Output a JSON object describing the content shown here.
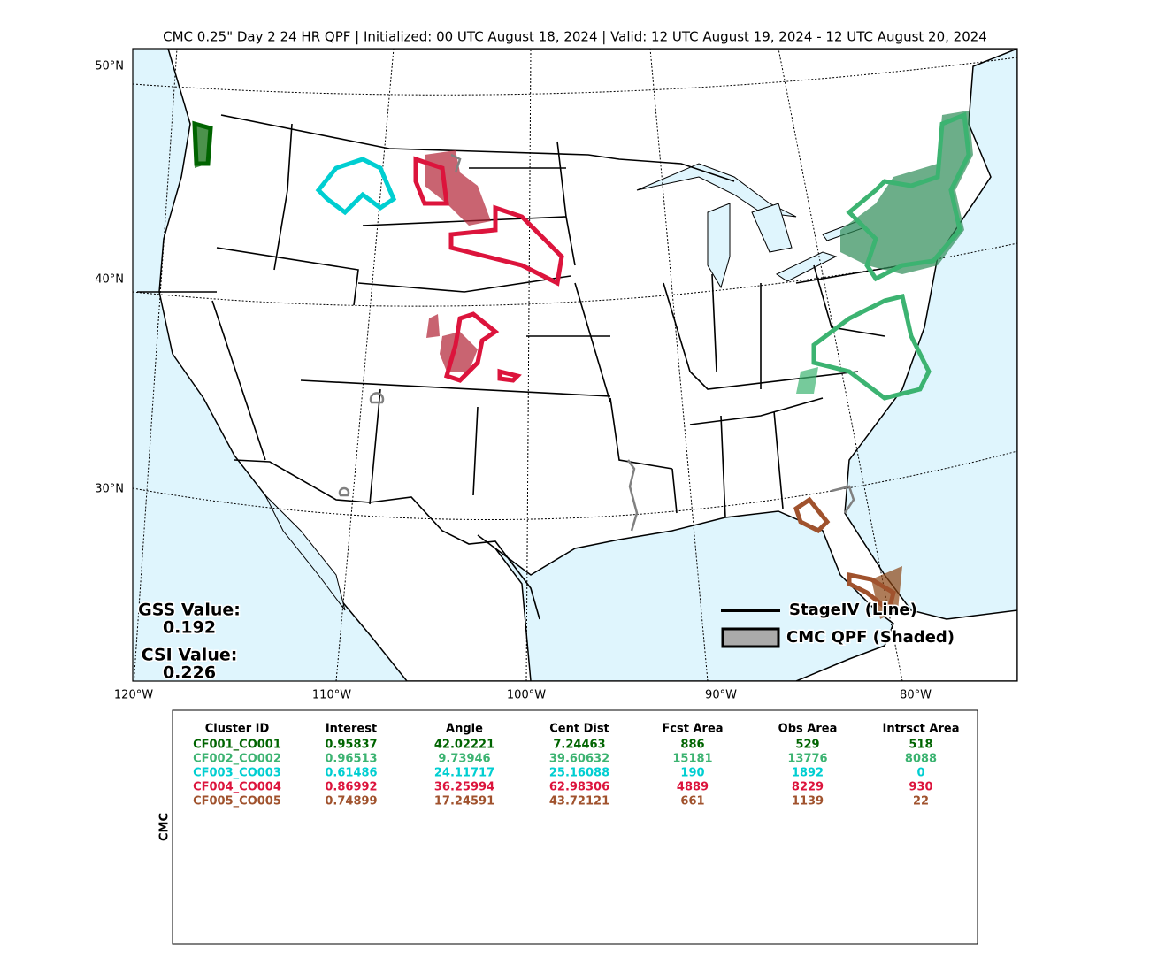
{
  "title": "CMC 0.25\" Day 2 24 HR QPF | Initialized: 00 UTC August 18, 2024 | Valid: 12 UTC August 19, 2024 - 12 UTC August 20, 2024",
  "map": {
    "lat_labels": [
      "50°N",
      "40°N",
      "30°N"
    ],
    "lon_labels": [
      "120°W",
      "110°W",
      "100°W",
      "90°W",
      "80°W"
    ],
    "scores": {
      "gss_label": "GSS Value:",
      "gss": "0.192",
      "csi_label": "CSI Value:",
      "csi": "0.226"
    },
    "legend": [
      "StageIV (Line)",
      "CMC QPF (Shaded)"
    ]
  },
  "table": {
    "side_label": "CMC",
    "header": [
      "Cluster ID",
      "Interest",
      "Angle",
      "Cent Dist",
      "Fcst Area",
      "Obs Area",
      "Intrsct Area"
    ],
    "rows": [
      [
        "CF001_CO001",
        "0.95837",
        "42.02221",
        "7.24463",
        "886",
        "529",
        "518"
      ],
      [
        "CF002_CO002",
        "0.96513",
        "9.73946",
        "39.60632",
        "15181",
        "13776",
        "8088"
      ],
      [
        "CF003_CO003",
        "0.61486",
        "24.11717",
        "25.16088",
        "190",
        "1892",
        "0"
      ],
      [
        "CF004_CO004",
        "0.86992",
        "36.25994",
        "62.98306",
        "4889",
        "8229",
        "930"
      ],
      [
        "CF005_CO005",
        "0.74899",
        "17.24591",
        "43.72121",
        "661",
        "1139",
        "22"
      ]
    ],
    "row_colors": [
      "#006400",
      "#3cb371",
      "#00ced1",
      "#dc143c",
      "#a0522d"
    ]
  }
}
